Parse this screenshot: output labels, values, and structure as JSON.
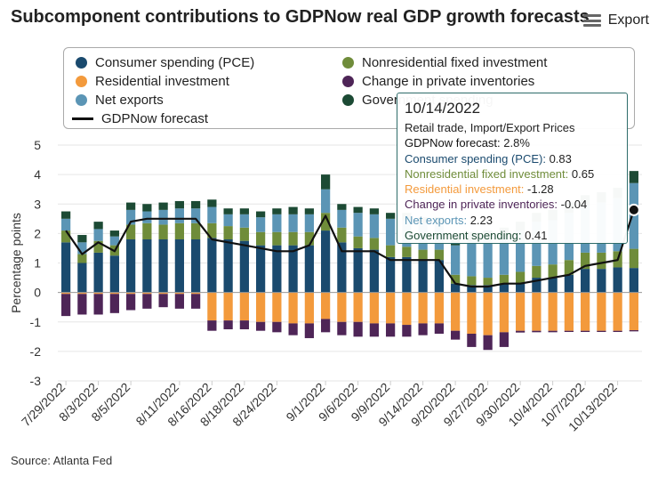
{
  "title": "Subcomponent contributions to GDPNow real GDP growth forecasts",
  "export_label": "Export",
  "source": "Source: Atlanta Fed",
  "colors": {
    "pce": "#1a4a6e",
    "nonres": "#6f8c3a",
    "res": "#f39a3c",
    "inv": "#4e2557",
    "netexp": "#5b95b5",
    "gov": "#1c4a34",
    "line": "#111111"
  },
  "legend": [
    {
      "key": "pce",
      "label": "Consumer spending (PCE)"
    },
    {
      "key": "nonres",
      "label": "Nonresidential fixed investment"
    },
    {
      "key": "res",
      "label": "Residential investment"
    },
    {
      "key": "inv",
      "label": "Change in private inventories"
    },
    {
      "key": "netexp",
      "label": "Net exports"
    },
    {
      "key": "gov",
      "label": "Government spending"
    },
    {
      "key": "line",
      "label": "GDPNow forecast"
    }
  ],
  "tooltip": {
    "date": "10/14/2022",
    "subtitle": "Retail trade, Import/Export Prices",
    "rows": [
      {
        "label": "GDPNow forecast: ",
        "value": "2.8%",
        "color": "#111111"
      },
      {
        "label": "Consumer spending (PCE): ",
        "value": "0.83",
        "color": "#1a4a6e"
      },
      {
        "label": "Nonresidential fixed investment: ",
        "value": "0.65",
        "color": "#6f8c3a"
      },
      {
        "label": "Residential investment: ",
        "value": "-1.28",
        "color": "#f39a3c"
      },
      {
        "label": "Change in private inventories: ",
        "value": "-0.04",
        "color": "#4e2557"
      },
      {
        "label": "Net exports: ",
        "value": "2.23",
        "color": "#5b95b5"
      },
      {
        "label": "Government spending: ",
        "value": "0.41",
        "color": "#1c4a34"
      }
    ]
  },
  "chart_data": {
    "type": "bar",
    "stacked": true,
    "title": "Subcomponent contributions to GDPNow real GDP growth forecasts",
    "ylabel": "Percentage points",
    "xlabel": "",
    "ylim": [
      -3,
      5
    ],
    "yticks": [
      -3,
      -2,
      -1,
      0,
      1,
      2,
      3,
      4,
      5
    ],
    "tick_labels": [
      "7/29/2022",
      "8/3/2022",
      "8/5/2022",
      "8/11/2022",
      "8/16/2022",
      "8/18/2022",
      "8/24/2022",
      "9/1/2022",
      "9/6/2022",
      "9/9/2022",
      "9/14/2022",
      "9/20/2022",
      "9/27/2022",
      "9/30/2022",
      "10/4/2022",
      "10/7/2022",
      "10/13/2022"
    ],
    "tick_index": [
      0,
      2,
      4,
      7,
      9,
      11,
      13,
      16,
      18,
      20,
      22,
      24,
      26,
      28,
      30,
      32,
      34
    ],
    "categories": [
      "7/29/2022",
      "8/1/2022",
      "8/3/2022",
      "8/4/2022",
      "8/5/2022",
      "8/8/2022",
      "8/10/2022",
      "8/11/2022",
      "8/12/2022",
      "8/16/2022",
      "8/17/2022",
      "8/18/2022",
      "8/19/2022",
      "8/24/2022",
      "8/25/2022",
      "8/26/2022",
      "9/1/2022",
      "9/2/2022",
      "9/6/2022",
      "9/7/2022",
      "9/9/2022",
      "9/13/2022",
      "9/14/2022",
      "9/15/2022",
      "9/20/2022",
      "9/22/2022",
      "9/27/2022",
      "9/28/2022",
      "9/30/2022",
      "10/3/2022",
      "10/4/2022",
      "10/5/2022",
      "10/7/2022",
      "10/11/2022",
      "10/13/2022",
      "10/14/2022"
    ],
    "series": [
      {
        "key": "pce",
        "name": "Consumer spending (PCE)",
        "values": [
          1.7,
          1.0,
          1.35,
          1.25,
          1.8,
          1.8,
          1.8,
          1.8,
          1.8,
          1.85,
          1.8,
          1.75,
          1.6,
          1.6,
          1.6,
          1.6,
          2.1,
          1.7,
          1.5,
          1.45,
          1.2,
          1.2,
          1.1,
          1.1,
          0.3,
          0.25,
          0.25,
          0.3,
          0.3,
          0.5,
          0.5,
          0.6,
          0.8,
          0.8,
          0.85,
          0.83
        ]
      },
      {
        "key": "nonres",
        "name": "Nonresidential fixed investment",
        "values": [
          0.4,
          0.3,
          0.4,
          0.35,
          0.5,
          0.55,
          0.5,
          0.55,
          0.55,
          0.5,
          0.45,
          0.45,
          0.45,
          0.45,
          0.45,
          0.45,
          0.6,
          0.5,
          0.4,
          0.4,
          0.4,
          0.35,
          0.35,
          0.35,
          0.3,
          0.3,
          0.25,
          0.3,
          0.4,
          0.4,
          0.45,
          0.5,
          0.55,
          0.55,
          0.55,
          0.65
        ]
      },
      {
        "key": "netexp",
        "name": "Net exports",
        "values": [
          0.4,
          0.4,
          0.4,
          0.3,
          0.5,
          0.4,
          0.5,
          0.5,
          0.5,
          0.55,
          0.4,
          0.45,
          0.5,
          0.6,
          0.6,
          0.6,
          0.8,
          0.6,
          0.8,
          0.8,
          0.9,
          0.9,
          0.9,
          0.9,
          1.0,
          1.2,
          1.3,
          1.3,
          1.4,
          1.5,
          1.5,
          1.6,
          1.6,
          1.7,
          1.8,
          2.23
        ]
      },
      {
        "key": "gov",
        "name": "Government spending",
        "values": [
          0.25,
          0.25,
          0.25,
          0.2,
          0.25,
          0.25,
          0.25,
          0.25,
          0.25,
          0.25,
          0.2,
          0.2,
          0.2,
          0.2,
          0.25,
          0.2,
          0.5,
          0.2,
          0.2,
          0.2,
          0.2,
          0.25,
          0.2,
          0.2,
          0.3,
          0.3,
          0.3,
          0.3,
          0.3,
          0.3,
          0.35,
          0.35,
          0.35,
          0.35,
          0.35,
          0.41
        ]
      },
      {
        "key": "res",
        "name": "Residential investment",
        "values": [
          -0.05,
          -0.05,
          -0.05,
          -0.05,
          -0.05,
          -0.05,
          -0.05,
          -0.05,
          -0.05,
          -0.95,
          -0.95,
          -0.95,
          -1.0,
          -1.0,
          -1.05,
          -1.05,
          -0.9,
          -1.0,
          -1.0,
          -1.05,
          -1.05,
          -1.1,
          -1.05,
          -1.05,
          -1.3,
          -1.4,
          -1.45,
          -1.35,
          -1.3,
          -1.3,
          -1.3,
          -1.3,
          -1.3,
          -1.3,
          -1.3,
          -1.28
        ]
      },
      {
        "key": "inv",
        "name": "Change in private inventories",
        "values": [
          -0.75,
          -0.7,
          -0.7,
          -0.65,
          -0.55,
          -0.5,
          -0.45,
          -0.5,
          -0.5,
          -0.35,
          -0.3,
          -0.3,
          -0.3,
          -0.35,
          -0.4,
          -0.5,
          -0.45,
          -0.45,
          -0.5,
          -0.45,
          -0.45,
          -0.4,
          -0.4,
          -0.35,
          -0.3,
          -0.45,
          -0.5,
          -0.5,
          -0.06,
          -0.05,
          -0.05,
          -0.04,
          -0.04,
          -0.04,
          -0.04,
          -0.04
        ]
      }
    ],
    "gdpnow": [
      2.1,
      1.3,
      1.7,
      1.4,
      2.4,
      2.5,
      2.5,
      2.5,
      2.5,
      1.8,
      1.7,
      1.6,
      1.5,
      1.4,
      1.4,
      1.6,
      2.6,
      1.4,
      1.4,
      1.4,
      1.1,
      1.1,
      1.1,
      1.1,
      0.3,
      0.2,
      0.2,
      0.3,
      0.3,
      0.4,
      0.5,
      0.6,
      0.9,
      1.0,
      1.1,
      2.8
    ]
  }
}
